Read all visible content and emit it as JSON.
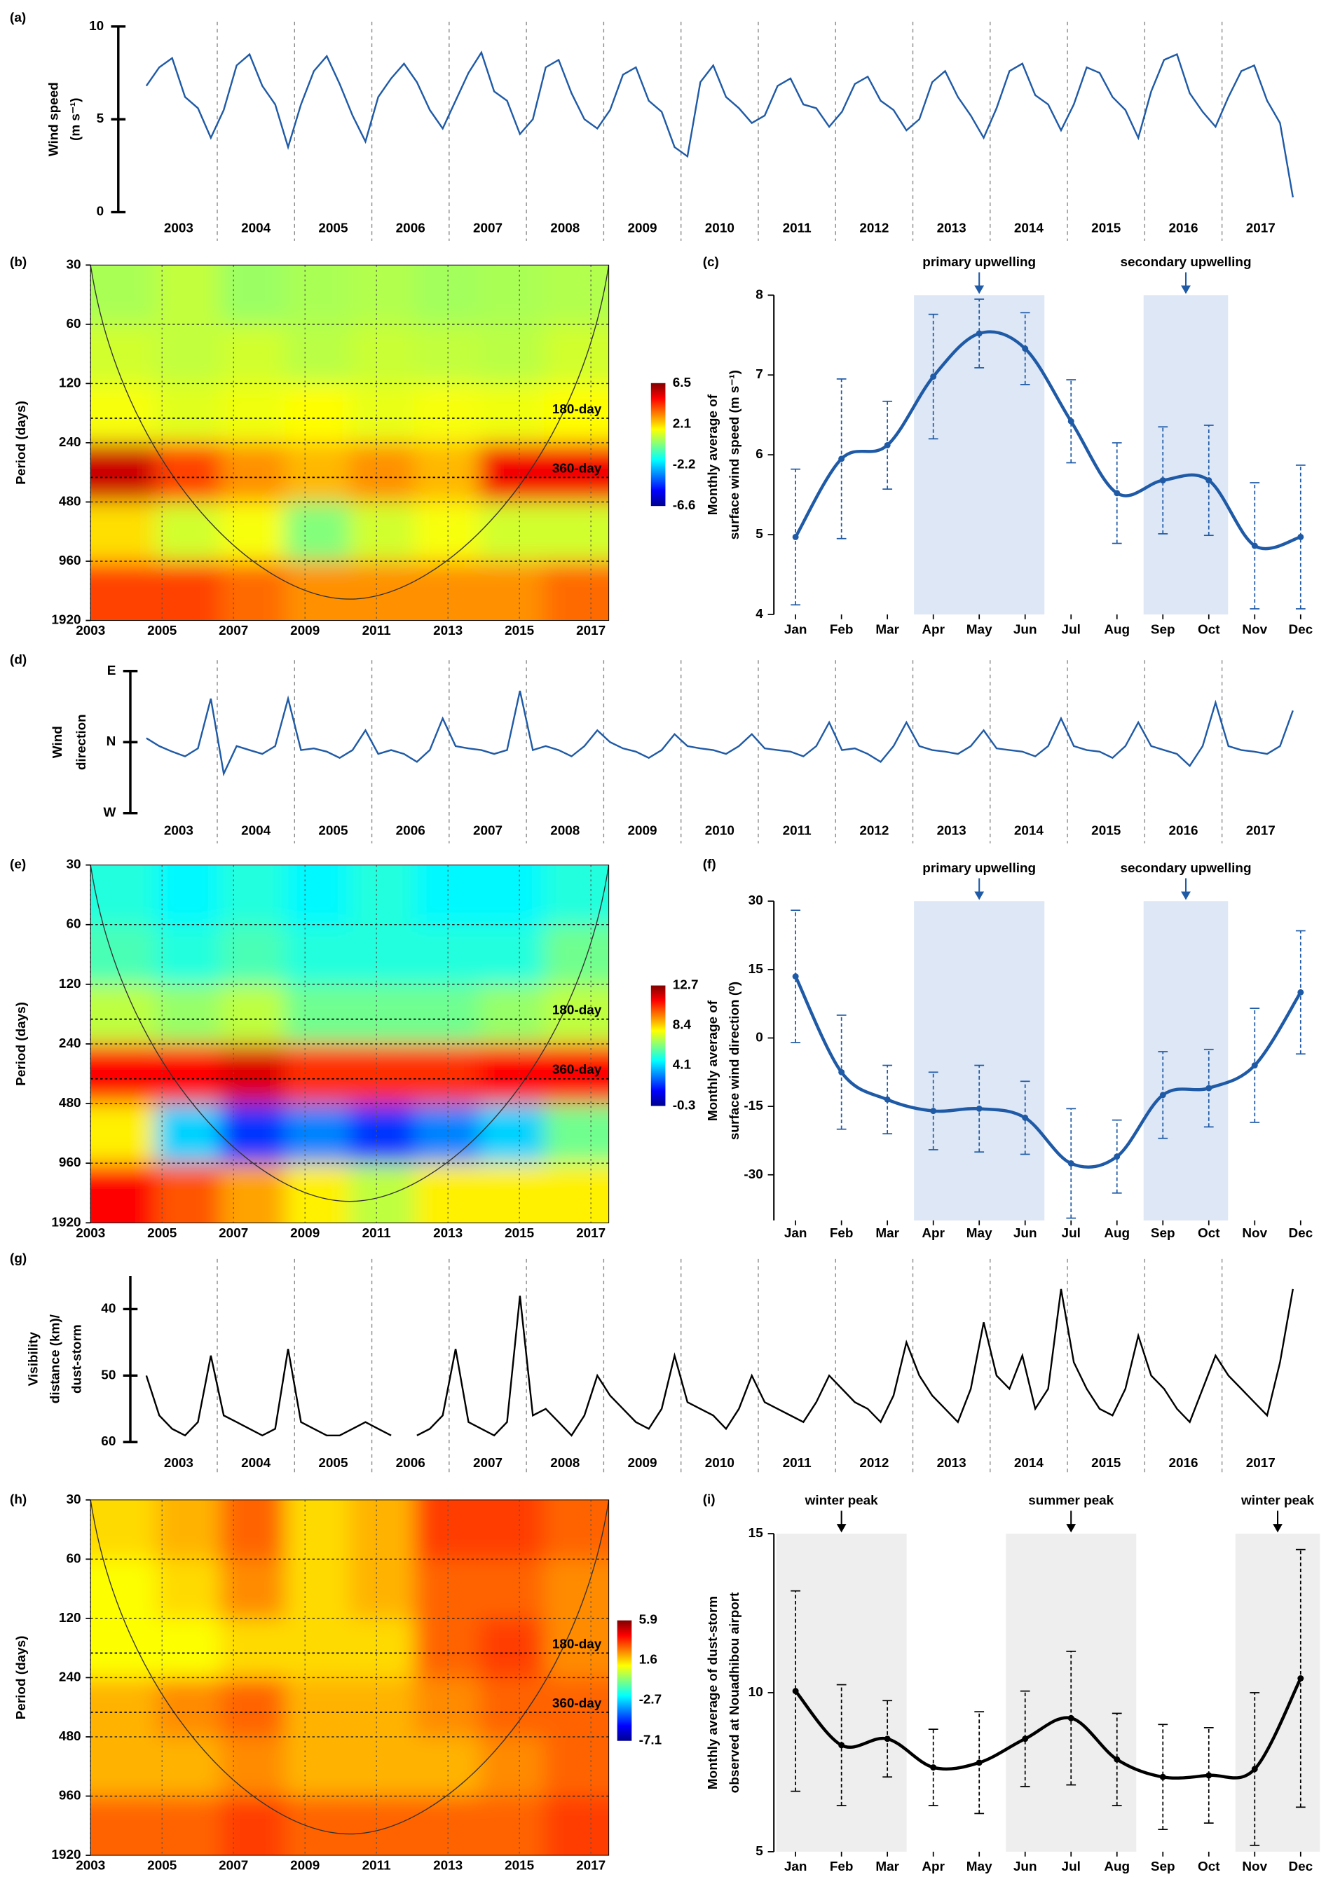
{
  "chart_data": [
    {
      "type": "line",
      "label": "(a)",
      "ylabel": [
        "Wind speed",
        "(m s⁻¹)"
      ],
      "color": "#1f5aa6",
      "categories": [
        2003,
        2004,
        2005,
        2006,
        2007,
        2008,
        2009,
        2010,
        2011,
        2012,
        2013,
        2014,
        2015,
        2016,
        2017
      ],
      "ylim": [
        0,
        10
      ],
      "yticks": [
        0,
        5,
        10
      ],
      "values": [
        [
          6.8,
          7.8,
          8.3,
          6.2,
          5.6,
          4.0
        ],
        [
          5.5,
          7.9,
          8.5,
          6.8,
          5.8,
          3.5
        ],
        [
          5.8,
          7.6,
          8.4,
          6.9,
          5.2,
          3.8
        ],
        [
          6.2,
          7.2,
          8.0,
          7.0,
          5.5,
          4.5
        ],
        [
          6.0,
          7.5,
          8.6,
          6.5,
          6.0,
          4.2
        ],
        [
          5.0,
          7.8,
          8.2,
          6.4,
          5.0,
          4.5
        ],
        [
          5.5,
          7.4,
          7.8,
          6.0,
          5.4,
          3.5
        ],
        [
          3.0,
          7.0,
          7.9,
          6.2,
          5.6,
          4.8
        ],
        [
          5.2,
          6.8,
          7.2,
          5.8,
          5.6,
          4.6
        ],
        [
          5.4,
          6.9,
          7.3,
          6.0,
          5.5,
          4.4
        ],
        [
          5.0,
          7.0,
          7.6,
          6.2,
          5.2,
          4.0
        ],
        [
          5.6,
          7.6,
          8.0,
          6.3,
          5.8,
          4.4
        ],
        [
          5.8,
          7.8,
          7.5,
          6.2,
          5.5,
          4.0
        ],
        [
          6.5,
          8.2,
          8.5,
          6.4,
          5.4,
          4.6
        ],
        [
          6.2,
          7.6,
          7.9,
          6.0,
          4.8,
          0.8
        ]
      ]
    },
    {
      "type": "heatmap",
      "label": "(b)",
      "ylabel": [
        "Period (days)"
      ],
      "log_y": true,
      "grid": true,
      "ylim": [
        30,
        1920
      ],
      "yticks": [
        30,
        60,
        120,
        240,
        480,
        960,
        1920
      ],
      "xlim": [
        2003,
        2017.5
      ],
      "xticks": [
        2003,
        2005,
        2007,
        2009,
        2011,
        2013,
        2015,
        2017
      ],
      "zlim": [
        -6.6,
        6.5
      ],
      "zticks": [
        6.5,
        2.1,
        -2.2,
        -6.6
      ],
      "annotations": [
        {
          "label": "180-day",
          "value": 180
        },
        {
          "label": "360-day",
          "value": 360
        }
      ],
      "z": [
        [
          0.5,
          0.8,
          0.3,
          0.5,
          0.6,
          0.4,
          0.5,
          0.6
        ],
        [
          1,
          0.8,
          1,
          0.7,
          0.9,
          0.8,
          0.7,
          1
        ],
        [
          1.5,
          1.2,
          1.4,
          1.6,
          1.3,
          1.5,
          1.4,
          1.6
        ],
        [
          5.5,
          4,
          3,
          2.5,
          3,
          2.5,
          5,
          5
        ],
        [
          2,
          1,
          1.5,
          0,
          1,
          1.5,
          1,
          1
        ],
        [
          4,
          4,
          3.5,
          3,
          3,
          3,
          3,
          3.5
        ]
      ]
    },
    {
      "type": "line",
      "label": "(c)",
      "ylabel": [
        "Monthly average of",
        "surface wind speed (m s⁻¹)"
      ],
      "color": "#1f5aa6",
      "categories": [
        "Jan",
        "Feb",
        "Mar",
        "Apr",
        "May",
        "Jun",
        "Jul",
        "Aug",
        "Sep",
        "Oct",
        "Nov",
        "Dec"
      ],
      "values": [
        4.97,
        5.95,
        6.12,
        6.98,
        7.52,
        7.33,
        6.42,
        5.52,
        5.68,
        5.68,
        4.86,
        4.97
      ],
      "errors": [
        0.85,
        1.0,
        0.55,
        0.78,
        0.43,
        0.45,
        0.52,
        0.63,
        0.67,
        0.69,
        0.79,
        0.9
      ],
      "ylim": [
        4,
        8
      ],
      "yticks": [
        4,
        5,
        6,
        7,
        8
      ],
      "spans": [
        {
          "label": "primary upwelling",
          "categories": [
            "Apr",
            "Jun"
          ],
          "color": "#dde7f5"
        },
        {
          "label": "secondary upwelling",
          "categories": [
            "Sep",
            "Oct"
          ],
          "color": "#dde7f5"
        }
      ]
    },
    {
      "type": "line",
      "label": "(d)",
      "ylabel": [
        "Wind",
        "direction"
      ],
      "color": "#1f5aa6",
      "categories": [
        2003,
        2004,
        2005,
        2006,
        2007,
        2008,
        2009,
        2010,
        2011,
        2012,
        2013,
        2014,
        2015,
        2016,
        2017
      ],
      "ylim": [
        -90,
        90
      ],
      "yticks": [
        {
          "value": -90,
          "label": "W"
        },
        {
          "value": 0,
          "label": "N"
        },
        {
          "value": 90,
          "label": "E"
        }
      ],
      "values": [
        [
          5,
          -5,
          -12,
          -18,
          -8,
          55
        ],
        [
          -40,
          -5,
          -10,
          -15,
          -5,
          55
        ],
        [
          -10,
          -8,
          -12,
          -20,
          -10,
          15
        ],
        [
          -15,
          -10,
          -15,
          -25,
          -10,
          30
        ],
        [
          -5,
          -8,
          -10,
          -15,
          -10,
          65
        ],
        [
          -10,
          -5,
          -10,
          -18,
          -5,
          15
        ],
        [
          0,
          -8,
          -12,
          -20,
          -10,
          10
        ],
        [
          -5,
          -8,
          -10,
          -15,
          -5,
          10
        ],
        [
          -8,
          -10,
          -12,
          -18,
          -5,
          25
        ],
        [
          -10,
          -8,
          -15,
          -25,
          -5,
          25
        ],
        [
          -5,
          -10,
          -12,
          -15,
          -5,
          15
        ],
        [
          -8,
          -10,
          -12,
          -18,
          -5,
          30
        ],
        [
          -5,
          -10,
          -12,
          -20,
          -5,
          25
        ],
        [
          -5,
          -10,
          -15,
          -30,
          -5,
          50
        ],
        [
          -5,
          -10,
          -12,
          -15,
          -5,
          40
        ]
      ]
    },
    {
      "type": "heatmap",
      "label": "(e)",
      "ylabel": [
        "Period (days)"
      ],
      "log_y": true,
      "grid": true,
      "ylim": [
        30,
        1920
      ],
      "yticks": [
        30,
        60,
        120,
        240,
        480,
        960,
        1920
      ],
      "xlim": [
        2003,
        2017.5
      ],
      "xticks": [
        2003,
        2005,
        2007,
        2009,
        2011,
        2013,
        2015,
        2017
      ],
      "zlim": [
        -0.3,
        12.7
      ],
      "zticks": [
        12.7,
        8.4,
        4.1,
        -0.3
      ],
      "annotations": [
        {
          "label": "180-day",
          "value": 180
        },
        {
          "label": "360-day",
          "value": 360
        }
      ],
      "z": [
        [
          5,
          4.5,
          5,
          4.5,
          5,
          4.5,
          4.5,
          5
        ],
        [
          5.5,
          5,
          5.5,
          5,
          5,
          5,
          5,
          6
        ],
        [
          7,
          6.5,
          7,
          6,
          6,
          6,
          6.5,
          7
        ],
        [
          11,
          11,
          11.5,
          10.5,
          10.5,
          10.5,
          11,
          11
        ],
        [
          8,
          4,
          2,
          3,
          2,
          3,
          4,
          6
        ],
        [
          11,
          10,
          9,
          8,
          7,
          8,
          8,
          8
        ]
      ]
    },
    {
      "type": "line",
      "label": "(f)",
      "ylabel": [
        "Monthly average of",
        "surface wind direction (⁰)"
      ],
      "color": "#1f5aa6",
      "categories": [
        "Jan",
        "Feb",
        "Mar",
        "Apr",
        "May",
        "Jun",
        "Jul",
        "Aug",
        "Sep",
        "Oct",
        "Nov",
        "Dec"
      ],
      "values": [
        13.5,
        -7.5,
        -13.5,
        -16,
        -15.5,
        -17.5,
        -27.5,
        -26,
        -12.5,
        -11,
        -6,
        10
      ],
      "errors": [
        14.5,
        12.5,
        7.5,
        8.5,
        9.5,
        8,
        12,
        8,
        9.5,
        8.5,
        12.5,
        13.5
      ],
      "ylim": [
        -40,
        30
      ],
      "yticks": [
        -30,
        -15,
        0,
        15,
        30
      ],
      "spans": [
        {
          "label": "primary upwelling",
          "categories": [
            "Apr",
            "Jun"
          ],
          "color": "#dde7f5"
        },
        {
          "label": "secondary upwelling",
          "categories": [
            "Sep",
            "Oct"
          ],
          "color": "#dde7f5"
        }
      ]
    },
    {
      "type": "line",
      "label": "(g)",
      "ylabel": [
        "Visibility",
        "distance (km)/",
        "dust-storm"
      ],
      "color": "#000000",
      "categories": [
        2003,
        2004,
        2005,
        2006,
        2007,
        2008,
        2009,
        2010,
        2011,
        2012,
        2013,
        2014,
        2015,
        2016,
        2017
      ],
      "ylim": [
        60,
        35
      ],
      "yticks": [
        40,
        50,
        60
      ],
      "values": [
        [
          50,
          56,
          58,
          59,
          57,
          47
        ],
        [
          56,
          57,
          58,
          59,
          58,
          46
        ],
        [
          57,
          58,
          59,
          59,
          58,
          57
        ],
        [
          58,
          59,
          null,
          59,
          58,
          56
        ],
        [
          46,
          57,
          58,
          59,
          57,
          38
        ],
        [
          56,
          55,
          57,
          59,
          56,
          50
        ],
        [
          53,
          55,
          57,
          58,
          55,
          47
        ],
        [
          54,
          55,
          56,
          58,
          55,
          50
        ],
        [
          54,
          55,
          56,
          57,
          54,
          50
        ],
        [
          52,
          54,
          55,
          57,
          53,
          45
        ],
        [
          50,
          53,
          55,
          57,
          52,
          42
        ],
        [
          50,
          52,
          47,
          55,
          52,
          37
        ],
        [
          48,
          52,
          55,
          56,
          52,
          44
        ],
        [
          50,
          52,
          55,
          57,
          52,
          47
        ],
        [
          50,
          52,
          54,
          56,
          48,
          37
        ]
      ]
    },
    {
      "type": "heatmap",
      "label": "(h)",
      "ylabel": [
        "Period (days)"
      ],
      "log_y": true,
      "grid": true,
      "ylim": [
        30,
        1920
      ],
      "yticks": [
        30,
        60,
        120,
        240,
        480,
        960,
        1920
      ],
      "xlim": [
        2003,
        2017.5
      ],
      "xticks": [
        2003,
        2005,
        2007,
        2009,
        2011,
        2013,
        2015,
        2017
      ],
      "zlim": [
        -7.1,
        5.9
      ],
      "zticks": [
        5.9,
        1.6,
        -2.7,
        -7.1
      ],
      "annotations": [
        {
          "label": "180-day",
          "value": 180
        },
        {
          "label": "360-day",
          "value": 360
        }
      ],
      "z": [
        [
          1.5,
          2,
          3,
          1.5,
          2,
          3.5,
          3.5,
          3
        ],
        [
          1,
          1.5,
          2.5,
          1.5,
          2,
          3,
          3,
          2.5
        ],
        [
          1,
          1,
          1.5,
          1.5,
          1.5,
          3,
          3.5,
          2.5
        ],
        [
          2,
          2.5,
          3,
          2,
          2,
          2.5,
          3,
          3
        ],
        [
          2,
          2,
          2.5,
          2,
          2,
          2,
          2.5,
          3
        ],
        [
          3,
          3,
          3.5,
          3,
          3,
          3,
          3,
          3.5
        ]
      ]
    },
    {
      "type": "line",
      "label": "(i)",
      "ylabel": [
        "Monthly average of dust-storm",
        "observed at Nouadhibou airport"
      ],
      "color": "#000000",
      "categories": [
        "Jan",
        "Feb",
        "Mar",
        "Apr",
        "May",
        "Jun",
        "Jul",
        "Aug",
        "Sep",
        "Oct",
        "Nov",
        "Dec"
      ],
      "values": [
        10.05,
        8.35,
        8.55,
        7.65,
        7.8,
        8.55,
        9.2,
        7.9,
        7.35,
        7.4,
        7.6,
        10.45
      ],
      "errors": [
        3.15,
        1.9,
        1.2,
        1.2,
        1.6,
        1.5,
        2.1,
        1.45,
        1.65,
        1.5,
        2.4,
        4.05
      ],
      "ylim": [
        5,
        15
      ],
      "yticks": [
        5,
        10,
        15
      ],
      "spans": [
        {
          "label": "winter peak",
          "categories": [
            "Jan",
            "Mar"
          ],
          "color": "#eeeeee"
        },
        {
          "label": "summer peak",
          "categories": [
            "Jun",
            "Aug"
          ],
          "color": "#eeeeee"
        },
        {
          "label": "winter peak",
          "categories": [
            "Nov",
            "Dec"
          ],
          "color": "#eeeeee"
        }
      ]
    }
  ]
}
